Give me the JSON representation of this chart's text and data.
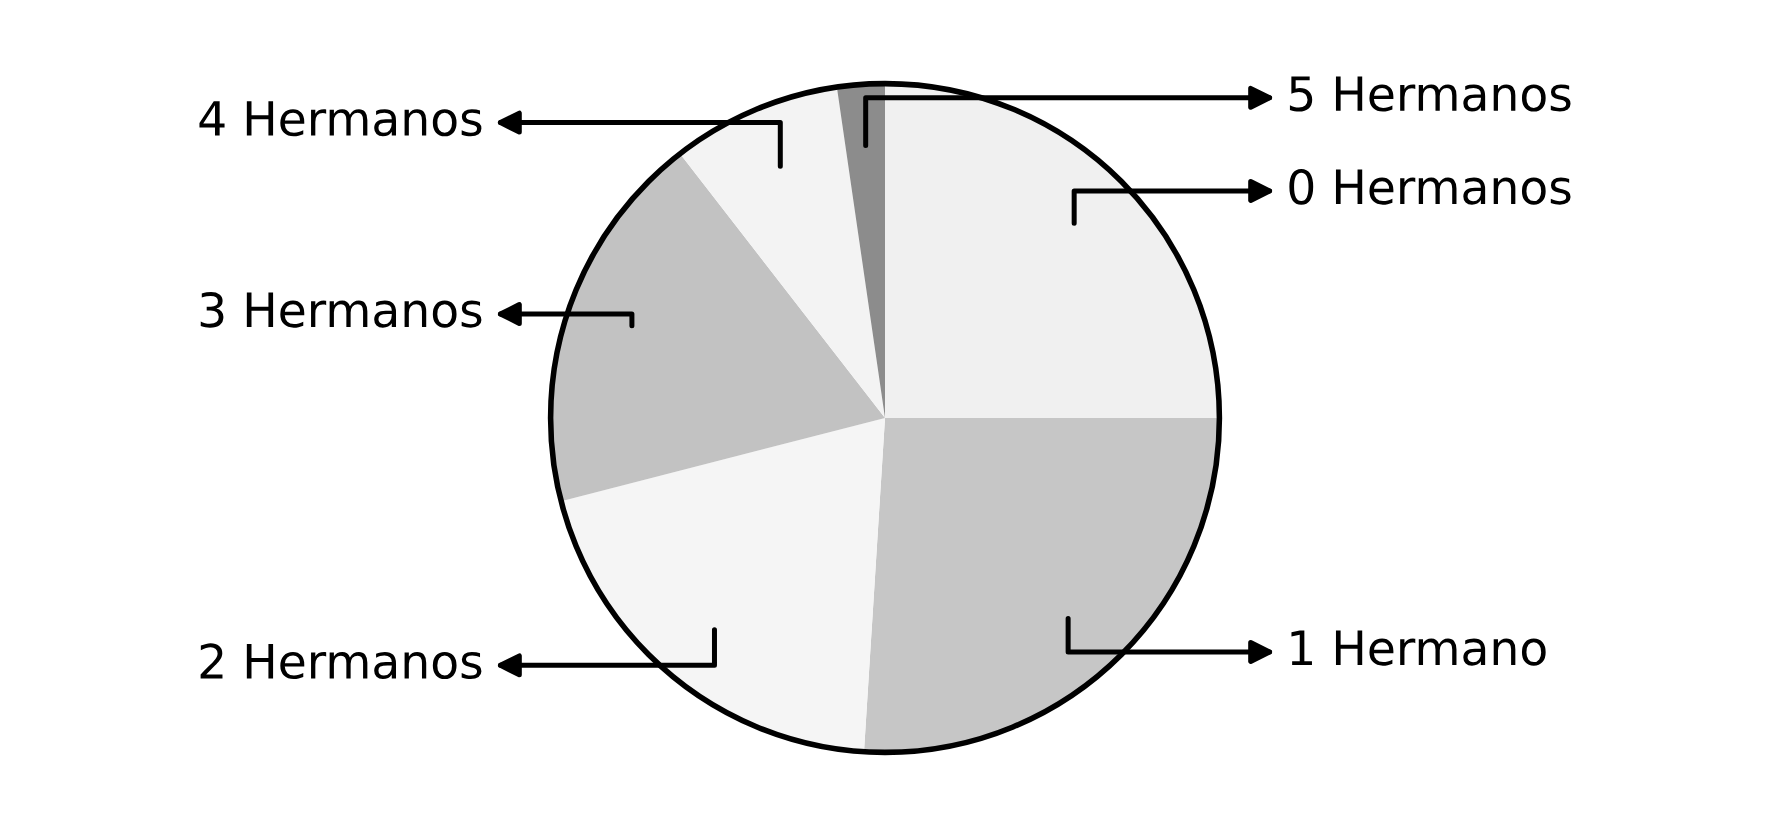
{
  "chart_data": {
    "type": "pie",
    "categories": [
      "0 Hermanos",
      "1 Hermano",
      "2 Hermanos",
      "3 Hermanos",
      "4 Hermanos",
      "5 Hermanos"
    ],
    "values": [
      25,
      26,
      20,
      18.5,
      8.2,
      2.3
    ],
    "colors": [
      "#f0f0f0",
      "#c6c6c6",
      "#f5f5f5",
      "#c2c2c2",
      "#f3f3f3",
      "#8c8c8c"
    ]
  }
}
